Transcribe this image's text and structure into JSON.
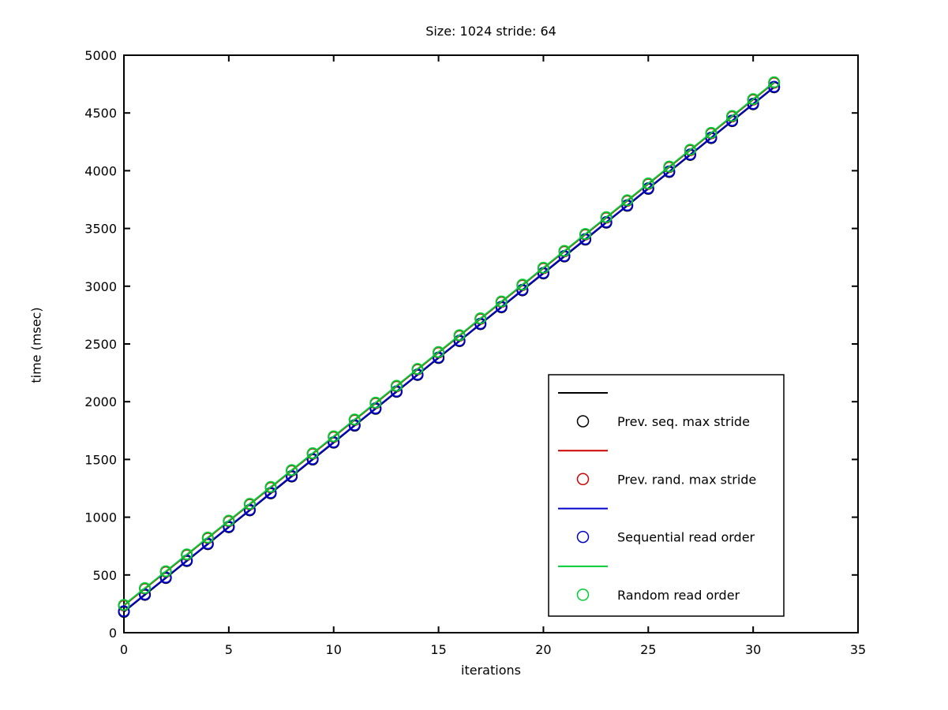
{
  "title": "Size: 1024 stride: 64",
  "axes": {
    "x": {
      "label": "iterations",
      "min": 0,
      "max": 35,
      "ticks": [
        0,
        5,
        10,
        15,
        20,
        25,
        30,
        35
      ]
    },
    "y": {
      "label": "time (msec)",
      "min": 0,
      "max": 5000,
      "ticks": [
        0,
        500,
        1000,
        1500,
        2000,
        2500,
        3000,
        3500,
        4000,
        4500,
        5000
      ]
    }
  },
  "legend": {
    "position": "inside-lower-right",
    "entries": [
      {
        "label": "Prev. seq. max stride",
        "color": "#000000"
      },
      {
        "label": "Prev. rand. max stride",
        "color": "#cc0000"
      },
      {
        "label": "Sequential read order",
        "color": "#0000cc"
      },
      {
        "label": "Random read order",
        "color": "#00cc33"
      }
    ]
  },
  "chart_data": {
    "type": "line",
    "title": "Size: 1024 stride: 64",
    "xlabel": "iterations",
    "ylabel": "time (msec)",
    "xlim": [
      0,
      35
    ],
    "ylim": [
      0,
      5000
    ],
    "grid": false,
    "legend_position": "inside-lower-right",
    "marker": "circle",
    "x": [
      0,
      1,
      2,
      3,
      4,
      5,
      6,
      7,
      8,
      9,
      10,
      11,
      12,
      13,
      14,
      15,
      16,
      17,
      18,
      19,
      20,
      21,
      22,
      23,
      24,
      25,
      26,
      27,
      28,
      29,
      30,
      31
    ],
    "series": [
      {
        "name": "Prev. seq. max stride",
        "color": "#000000",
        "values": [
          180,
          327,
          473,
          620,
          766,
          913,
          1059,
          1206,
          1352,
          1499,
          1645,
          1792,
          1938,
          2085,
          2231,
          2378,
          2524,
          2671,
          2817,
          2964,
          3110,
          3257,
          3403,
          3550,
          3696,
          3843,
          3989,
          4136,
          4282,
          4429,
          4575,
          4722
        ]
      },
      {
        "name": "Prev. rand. max stride",
        "color": "#cc0000",
        "values": [
          235,
          381,
          527,
          673,
          819,
          965,
          1111,
          1257,
          1403,
          1549,
          1695,
          1841,
          1987,
          2133,
          2279,
          2425,
          2571,
          2717,
          2863,
          3009,
          3155,
          3301,
          3447,
          3593,
          3739,
          3885,
          4031,
          4177,
          4323,
          4469,
          4615,
          4761
        ]
      },
      {
        "name": "Sequential read order",
        "color": "#0000cc",
        "values": [
          185,
          332,
          478,
          625,
          771,
          918,
          1064,
          1211,
          1357,
          1504,
          1650,
          1797,
          1943,
          2090,
          2236,
          2383,
          2529,
          2676,
          2822,
          2969,
          3115,
          3262,
          3408,
          3555,
          3701,
          3848,
          3994,
          4141,
          4287,
          4434,
          4580,
          4727
        ]
      },
      {
        "name": "Random read order",
        "color": "#00cc33",
        "values": [
          240,
          386,
          532,
          678,
          824,
          970,
          1116,
          1262,
          1408,
          1554,
          1700,
          1846,
          1992,
          2138,
          2284,
          2430,
          2576,
          2722,
          2868,
          3014,
          3160,
          3306,
          3452,
          3598,
          3744,
          3890,
          4036,
          4182,
          4328,
          4474,
          4620,
          4766
        ]
      }
    ]
  }
}
